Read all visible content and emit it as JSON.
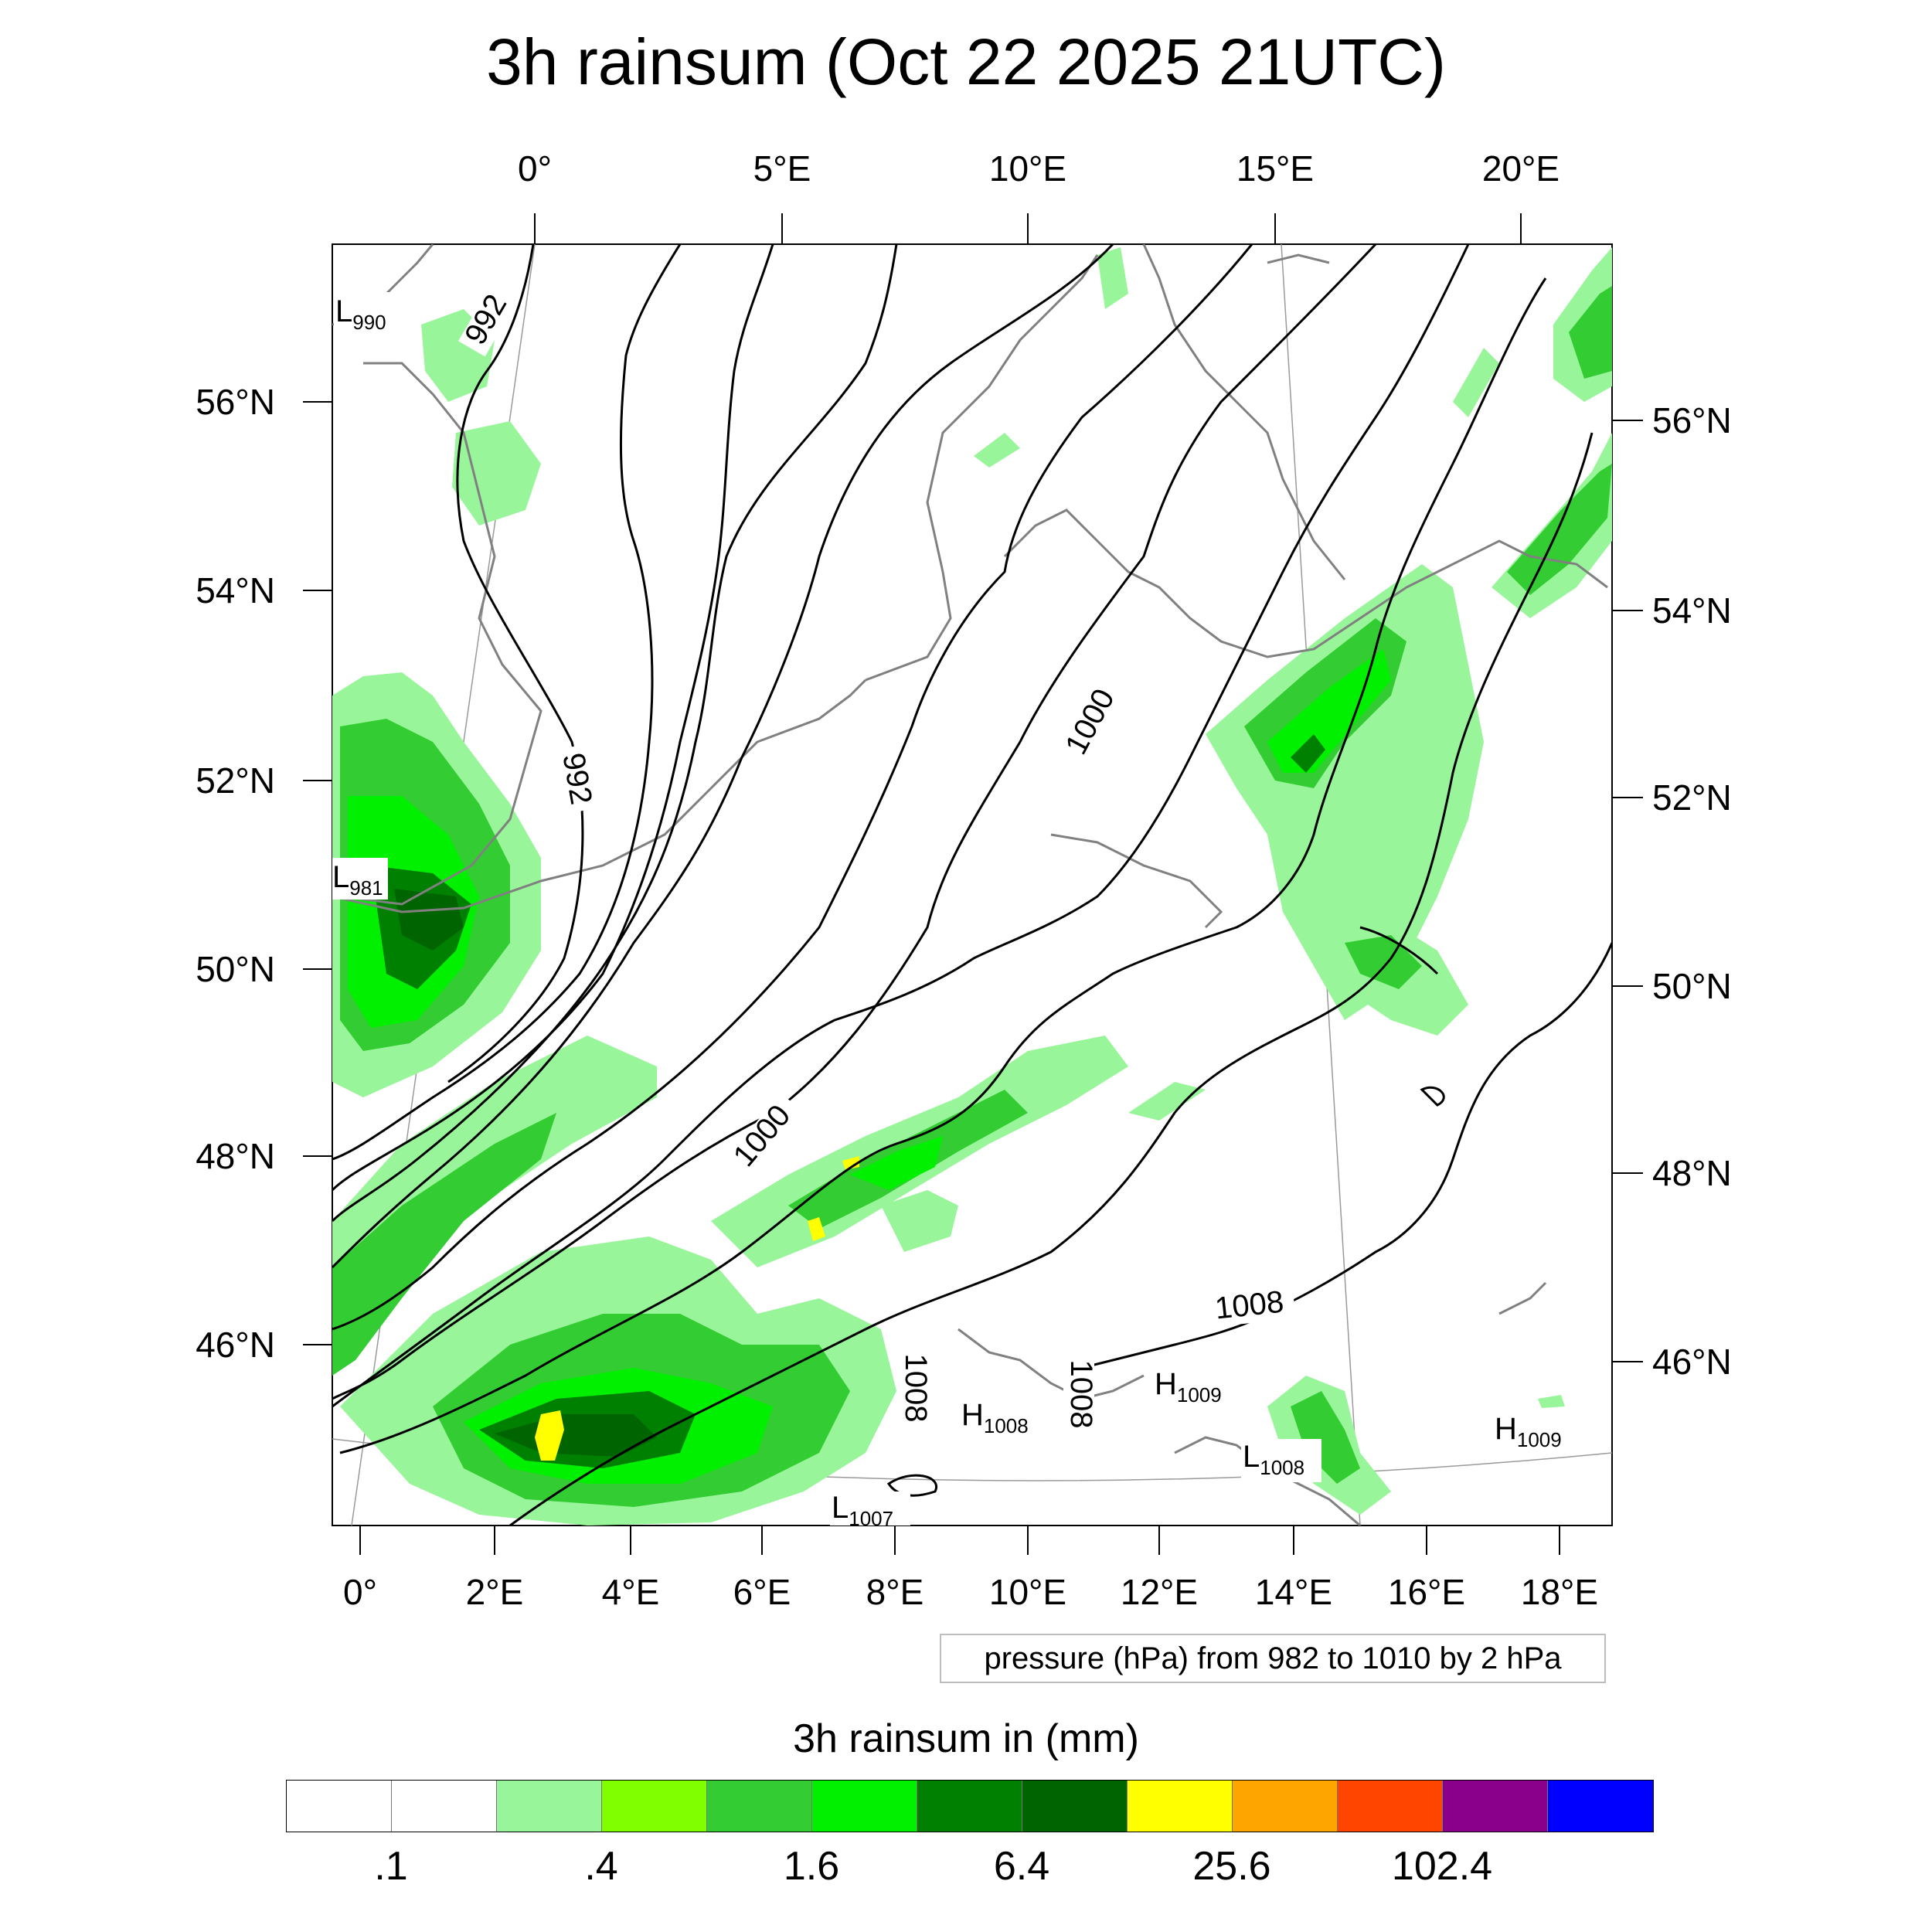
{
  "title": "3h rainsum (Oct 22 2025 21UTC)",
  "top_lon_labels": [
    "0°",
    "5°E",
    "10°E",
    "15°E",
    "20°E"
  ],
  "bottom_lon_labels": [
    "0°",
    "2°E",
    "4°E",
    "6°E",
    "8°E",
    "10°E",
    "12°E",
    "14°E",
    "16°E",
    "18°E"
  ],
  "left_lat_labels": [
    "56°N",
    "54°N",
    "52°N",
    "50°N",
    "48°N",
    "46°N"
  ],
  "right_lat_labels": [
    "56°N",
    "54°N",
    "52°N",
    "50°N",
    "48°N",
    "46°N"
  ],
  "contour_labels": [
    "992",
    "992",
    "1000",
    "1000",
    "1008",
    "1008",
    "1008"
  ],
  "pressure_centers": [
    {
      "type": "L",
      "value": "990"
    },
    {
      "type": "L",
      "value": "981"
    },
    {
      "type": "H",
      "value": "1008"
    },
    {
      "type": "H",
      "value": "1009"
    },
    {
      "type": "L",
      "value": "1008"
    },
    {
      "type": "H",
      "value": "1009"
    },
    {
      "type": "L",
      "value": "1007"
    }
  ],
  "pressure_note": "pressure (hPa) from 982 to 1010 by 2 hPa",
  "colorbar": {
    "title": "3h rainsum in (mm)",
    "colors": [
      "#ffffff",
      "#ffffff",
      "#99f599",
      "#80ff00",
      "#33cc33",
      "#00f000",
      "#008000",
      "#006400",
      "#ffff00",
      "#ffa500",
      "#ff4500",
      "#8b008b",
      "#0000ff"
    ],
    "labels": [
      ".1",
      ".4",
      "1.6",
      "6.4",
      "25.6",
      "102.4"
    ]
  }
}
